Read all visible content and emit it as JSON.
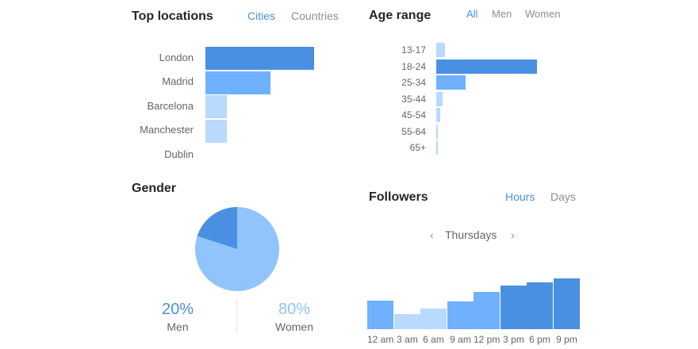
{
  "colors": {
    "dark": "#4a90e2",
    "medium": "#6fb1fc",
    "light": "#bad9fe",
    "pie_dark": "#4a90e2",
    "pie_light": "#90c4fa",
    "tab_active": "#4a90e2",
    "tab_inactive": "#8e8e8e"
  },
  "locations": {
    "title": "Top locations",
    "tabs": [
      "Cities",
      "Countries"
    ],
    "active_tab": "Cities"
  },
  "age": {
    "title": "Age range",
    "tabs": [
      "All",
      "Men",
      "Women"
    ],
    "active_tab": "All"
  },
  "gender": {
    "title": "Gender",
    "men_pct": "20%",
    "men_label": "Men",
    "women_pct": "80%",
    "women_label": "Women"
  },
  "followers": {
    "title": "Followers",
    "tabs": [
      "Hours",
      "Days"
    ],
    "active_tab": "Hours",
    "day": "Thursdays",
    "prev_icon": "‹",
    "next_icon": "›"
  },
  "chart_data": [
    {
      "id": "top-locations",
      "type": "bar",
      "orientation": "horizontal",
      "title": "Top locations",
      "categories": [
        "London",
        "Madrid",
        "Barcelona",
        "Manchester",
        "Dublin"
      ],
      "values": [
        100,
        60,
        20,
        20,
        0
      ],
      "shades": [
        "dark",
        "medium",
        "light",
        "light",
        "light"
      ]
    },
    {
      "id": "age-range",
      "type": "bar",
      "orientation": "horizontal",
      "title": "Age range",
      "categories": [
        "13-17",
        "18-24",
        "25-34",
        "35-44",
        "45-54",
        "55-64",
        "65+"
      ],
      "values": [
        9,
        100,
        29,
        6,
        4,
        1.5,
        1.5
      ],
      "shades": [
        "light",
        "dark",
        "medium",
        "light",
        "light",
        "light",
        "light"
      ]
    },
    {
      "id": "gender",
      "type": "pie",
      "title": "Gender",
      "labels": [
        "Men",
        "Women"
      ],
      "values": [
        20,
        80
      ]
    },
    {
      "id": "followers",
      "type": "bar",
      "title": "Followers",
      "categories": [
        "12 am",
        "3 am",
        "6 am",
        "9 am",
        "12 pm",
        "3 pm",
        "6 pm",
        "9 pm"
      ],
      "values": [
        57,
        30,
        41,
        55,
        74,
        86,
        92,
        100
      ],
      "shades": [
        "medium",
        "light",
        "light",
        "medium",
        "medium",
        "dark",
        "dark",
        "dark"
      ]
    }
  ]
}
